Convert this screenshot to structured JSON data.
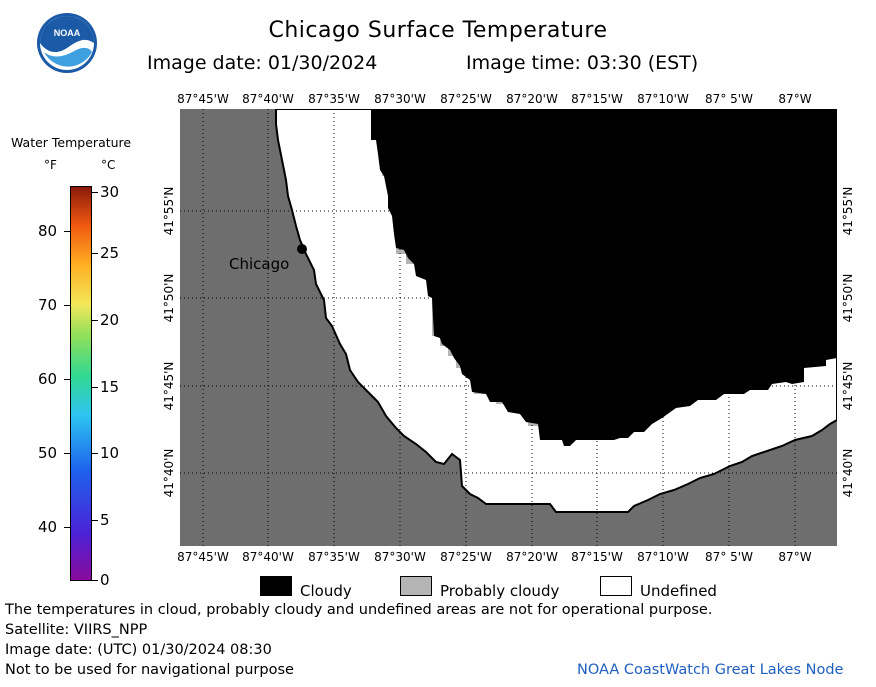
{
  "header": {
    "title": "Chicago Surface Temperature",
    "image_date": "Image date: 01/30/2024",
    "image_time": "Image time: 03:30 (EST)"
  },
  "logo": {
    "text": "NOAA"
  },
  "colorbar": {
    "title": "Water Temperature",
    "unit_f": "°F",
    "unit_c": "°C",
    "f_ticks": [
      "40",
      "50",
      "60",
      "70",
      "80"
    ],
    "c_ticks": [
      "0",
      "5",
      "10",
      "15",
      "20",
      "25",
      "30"
    ]
  },
  "map": {
    "lon_labels": [
      "87°45'W",
      "87°40'W",
      "87°35'W",
      "87°30'W",
      "87°25'W",
      "87°20'W",
      "87°15'W",
      "87°10'W",
      "87° 5'W",
      "87°W"
    ],
    "lat_labels": [
      "41°55'N",
      "41°50'N",
      "41°45'N",
      "41°40'N"
    ],
    "city_label": "Chicago",
    "colors": {
      "land": "#6e6e6e",
      "cloudy": "#000000",
      "probably_cloudy": "#b4b4b4",
      "undefined": "#ffffff"
    }
  },
  "legend": {
    "cloudy": "Cloudy",
    "probably_cloudy": "Probably cloudy",
    "undefined": "Undefined"
  },
  "footer": {
    "note": "The temperatures in cloud, probably cloudy and undefined areas are not for operational purpose.",
    "satellite": "Satellite: VIIRS_NPP",
    "utc_date": "Image date: (UTC) 01/30/2024  08:30",
    "nav_warning": "Not to be used for navigational purpose",
    "credit": "NOAA CoastWatch Great Lakes Node"
  }
}
